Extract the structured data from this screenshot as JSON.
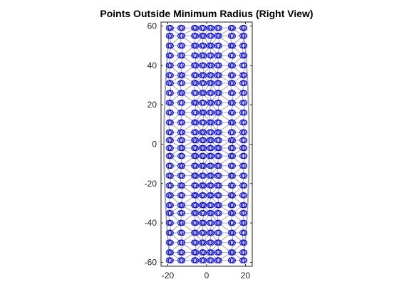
{
  "chart_data": {
    "type": "scatter",
    "title": "Points Outside Minimum Radius (Right View)",
    "xlabel": "",
    "ylabel": "",
    "xlim": [
      -23.5,
      23.5
    ],
    "ylim": [
      -62,
      62
    ],
    "xticks": [
      -20,
      0,
      20
    ],
    "yticks": [
      -60,
      -40,
      -20,
      0,
      20,
      40,
      60
    ],
    "xtick_labels": [
      "-20",
      "0",
      "20"
    ],
    "ytick_labels": [
      "-60",
      "-40",
      "-20",
      "0",
      "20",
      "40",
      "60"
    ],
    "grid": false,
    "legend": "none",
    "marker": "circle",
    "marker_color": "#0000ff",
    "mesh_color": "#a6a6a6",
    "point_columns_x": [
      -19,
      -13,
      -6,
      -2,
      2,
      6,
      13,
      19
    ],
    "point_rows_y": [
      59,
      55,
      50,
      45,
      40,
      35,
      31,
      26,
      21,
      16,
      11,
      6,
      2,
      -2,
      -6,
      -11,
      -16,
      -21,
      -26,
      -31,
      -35,
      -40,
      -45,
      -50,
      -55,
      -59
    ],
    "series": [
      {
        "points": [
          {
            "x": -19,
            "y": 59
          },
          {
            "x": -13,
            "y": 59
          },
          {
            "x": -6,
            "y": 59
          },
          {
            "x": -2,
            "y": 59
          },
          {
            "x": 2,
            "y": 59
          },
          {
            "x": 6,
            "y": 59
          },
          {
            "x": 13,
            "y": 59
          },
          {
            "x": 19,
            "y": 59
          },
          {
            "x": -19,
            "y": 55
          },
          {
            "x": -13,
            "y": 55
          },
          {
            "x": -6,
            "y": 55
          },
          {
            "x": -2,
            "y": 55
          },
          {
            "x": 2,
            "y": 55
          },
          {
            "x": 6,
            "y": 55
          },
          {
            "x": 13,
            "y": 55
          },
          {
            "x": 19,
            "y": 55
          },
          {
            "x": -19,
            "y": 45
          },
          {
            "x": -13,
            "y": 45
          },
          {
            "x": -6,
            "y": 45
          },
          {
            "x": -2,
            "y": 45
          },
          {
            "x": 2,
            "y": 45
          },
          {
            "x": 6,
            "y": 45
          },
          {
            "x": 13,
            "y": 45
          },
          {
            "x": 19,
            "y": 45
          },
          {
            "x": -19,
            "y": 31
          },
          {
            "x": -13,
            "y": 31
          },
          {
            "x": -6,
            "y": 31
          },
          {
            "x": -2,
            "y": 31
          },
          {
            "x": 2,
            "y": 31
          },
          {
            "x": 6,
            "y": 31
          },
          {
            "x": 13,
            "y": 31
          },
          {
            "x": 19,
            "y": 31
          },
          {
            "x": -19,
            "y": 16
          },
          {
            "x": -13,
            "y": 16
          },
          {
            "x": -6,
            "y": 16
          },
          {
            "x": -2,
            "y": 16
          },
          {
            "x": 2,
            "y": 16
          },
          {
            "x": 6,
            "y": 16
          },
          {
            "x": 13,
            "y": 16
          },
          {
            "x": 19,
            "y": 16
          },
          {
            "x": -19,
            "y": -2
          },
          {
            "x": -13,
            "y": -2
          },
          {
            "x": -6,
            "y": -2
          },
          {
            "x": -2,
            "y": -2
          },
          {
            "x": 2,
            "y": -2
          },
          {
            "x": 6,
            "y": -2
          },
          {
            "x": 13,
            "y": -2
          },
          {
            "x": 19,
            "y": -2
          },
          {
            "x": -19,
            "y": -16
          },
          {
            "x": -13,
            "y": -16
          },
          {
            "x": -6,
            "y": -16
          },
          {
            "x": -2,
            "y": -16
          },
          {
            "x": 2,
            "y": -16
          },
          {
            "x": 6,
            "y": -16
          },
          {
            "x": 13,
            "y": -16
          },
          {
            "x": 19,
            "y": -16
          },
          {
            "x": -19,
            "y": -31
          },
          {
            "x": -13,
            "y": -31
          },
          {
            "x": -6,
            "y": -31
          },
          {
            "x": -2,
            "y": -31
          },
          {
            "x": 2,
            "y": -31
          },
          {
            "x": 6,
            "y": -31
          },
          {
            "x": 13,
            "y": -31
          },
          {
            "x": 19,
            "y": -31
          },
          {
            "x": -19,
            "y": -45
          },
          {
            "x": -13,
            "y": -45
          },
          {
            "x": -6,
            "y": -45
          },
          {
            "x": -2,
            "y": -45
          },
          {
            "x": 2,
            "y": -45
          },
          {
            "x": 6,
            "y": -45
          },
          {
            "x": 13,
            "y": -45
          },
          {
            "x": 19,
            "y": -45
          },
          {
            "x": -19,
            "y": -59
          },
          {
            "x": -13,
            "y": -59
          },
          {
            "x": -6,
            "y": -59
          },
          {
            "x": -2,
            "y": -59
          },
          {
            "x": 2,
            "y": -59
          },
          {
            "x": 6,
            "y": -59
          },
          {
            "x": 13,
            "y": -59
          },
          {
            "x": 19,
            "y": -59
          }
        ]
      }
    ]
  }
}
